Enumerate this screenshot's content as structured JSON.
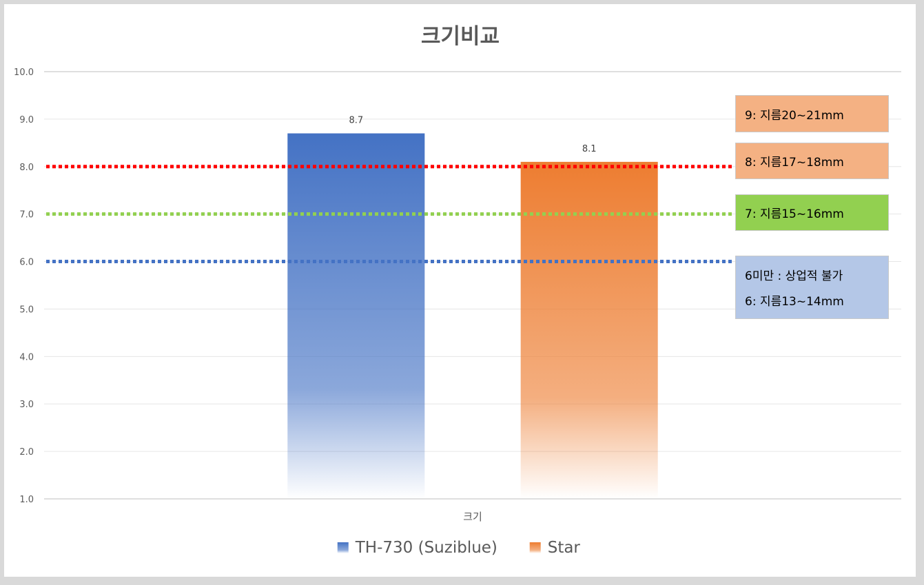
{
  "chart_data": {
    "type": "bar",
    "title": "크기비교",
    "xlabel": "",
    "ylabel": "",
    "categories": [
      "크기"
    ],
    "series": [
      {
        "name": "TH-730 (Suziblue)",
        "values": [
          8.7
        ],
        "color": "#4472c4"
      },
      {
        "name": "Star",
        "values": [
          8.1
        ],
        "color": "#ed7d31"
      }
    ],
    "ylim": [
      1.0,
      10.0
    ],
    "yticks": [
      "1.0",
      "2.0",
      "3.0",
      "4.0",
      "5.0",
      "6.0",
      "7.0",
      "8.0",
      "9.0",
      "10.0"
    ],
    "data_labels": [
      "8.7",
      "8.1"
    ],
    "grid": true,
    "legend": "bottom",
    "reference_lines": [
      {
        "value": 8.0,
        "color": "#ff0000"
      },
      {
        "value": 7.0,
        "color": "#92d050"
      },
      {
        "value": 6.0,
        "color": "#4472c4"
      }
    ],
    "annotations": [
      {
        "lines": [
          "9: 지름20~21mm"
        ],
        "color": "#f4b183"
      },
      {
        "lines": [
          "8: 지름17~18mm"
        ],
        "color": "#f4b183"
      },
      {
        "lines": [
          "7: 지름15~16mm"
        ],
        "color": "#92d050"
      },
      {
        "lines": [
          "6미만 : 상업적 불가",
          "6: 지름13~14mm"
        ],
        "color": "#b4c7e7"
      }
    ]
  }
}
